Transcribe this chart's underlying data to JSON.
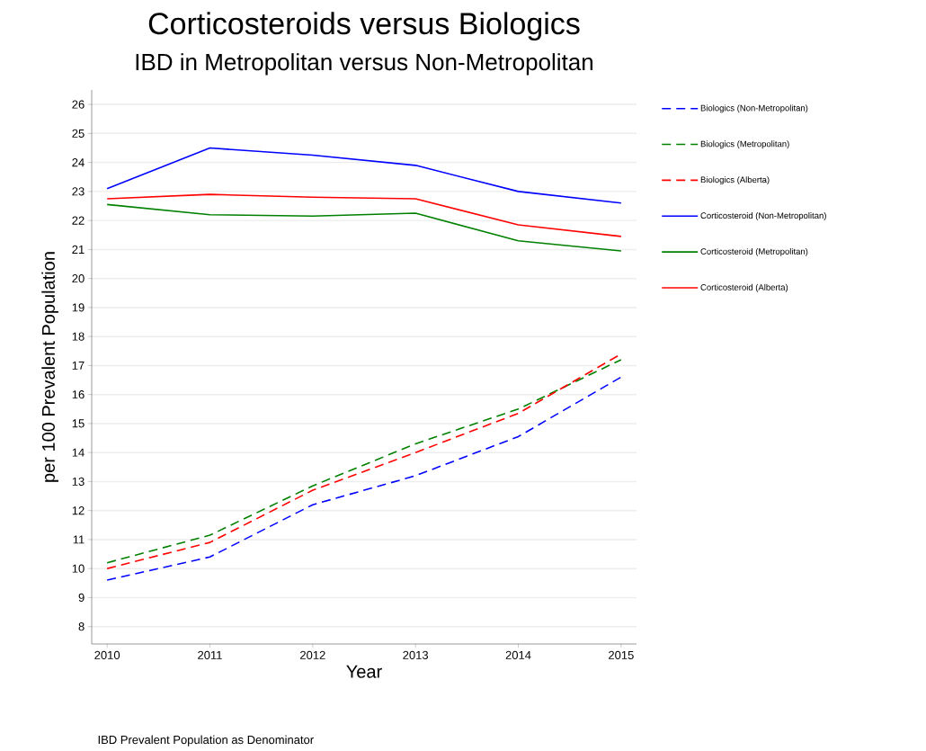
{
  "chart_data": {
    "type": "line",
    "title": "Corticosteroids versus Biologics",
    "subtitle": "IBD in Metropolitan versus Non-Metropolitan",
    "xlabel": "Year",
    "ylabel": "per 100 Prevalent Population",
    "x": [
      2010,
      2011,
      2012,
      2013,
      2014,
      2015
    ],
    "series": [
      {
        "name": "Biologics (Non-Metropolitan)",
        "color": "#0000ff",
        "line_style": "dashed",
        "values": [
          9.6,
          10.4,
          12.2,
          13.2,
          14.55,
          16.6
        ]
      },
      {
        "name": "Biologics (Metropolitan)",
        "color": "#008000",
        "line_style": "dashed",
        "values": [
          10.2,
          11.15,
          12.85,
          14.3,
          15.5,
          17.2
        ]
      },
      {
        "name": "Biologics (Alberta)",
        "color": "#ff0000",
        "line_style": "dashed",
        "values": [
          10.0,
          10.9,
          12.7,
          14.0,
          15.35,
          17.4
        ]
      },
      {
        "name": "Corticosteroid (Non-Metropolitan)",
        "color": "#0000ff",
        "line_style": "solid",
        "values": [
          23.1,
          24.5,
          24.25,
          23.9,
          23.0,
          22.6
        ]
      },
      {
        "name": "Corticosteroid (Metropolitan)",
        "color": "#008000",
        "line_style": "solid",
        "values": [
          22.55,
          22.2,
          22.15,
          22.25,
          21.3,
          20.95
        ]
      },
      {
        "name": "Corticosteroid (Alberta)",
        "color": "#ff0000",
        "line_style": "solid",
        "values": [
          22.75,
          22.9,
          22.8,
          22.75,
          21.85,
          21.45
        ]
      }
    ],
    "xlim": [
      2009.85,
      2015.15
    ],
    "xticks": [
      2010,
      2011,
      2012,
      2013,
      2014,
      2015
    ],
    "ylim": [
      7.4,
      26.5
    ],
    "yticks": [
      8,
      9,
      10,
      11,
      12,
      13,
      14,
      15,
      16,
      17,
      18,
      19,
      20,
      21,
      22,
      23,
      24,
      25,
      26
    ],
    "grid": "y",
    "legend": "right",
    "marker": "none",
    "annotations": [
      "IBD Prevalent Population as Denominator"
    ]
  }
}
